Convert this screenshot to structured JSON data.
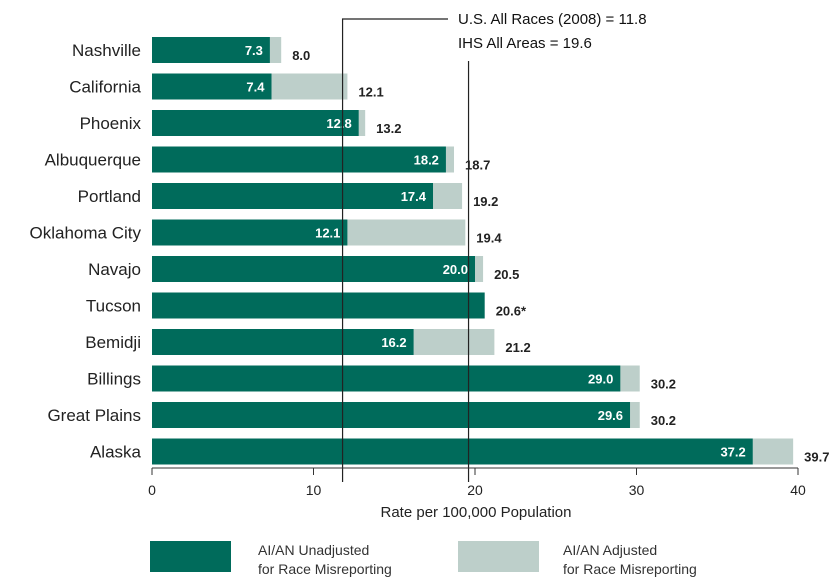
{
  "chart_data": {
    "type": "bar",
    "orientation": "horizontal",
    "categories": [
      "Nashville",
      "California",
      "Phoenix",
      "Albuquerque",
      "Portland",
      "Oklahoma City",
      "Navajo",
      "Tucson",
      "Bemidji",
      "Billings",
      "Great Plains",
      "Alaska"
    ],
    "series": [
      {
        "name": "AI/AN Unadjusted for Race Misreporting",
        "color": "#006b5b",
        "values": [
          7.3,
          7.4,
          12.8,
          18.2,
          17.4,
          12.1,
          20.0,
          20.6,
          16.2,
          29.0,
          29.6,
          37.2
        ],
        "labels": [
          "7.3",
          "7.4",
          "12.8",
          "18.2",
          "17.4",
          "12.1",
          "20.0",
          "",
          "16.2",
          "29.0",
          "29.6",
          "37.2"
        ]
      },
      {
        "name": "AI/AN Adjusted for Race Misreporting",
        "color": "#bdcfca",
        "values": [
          8.0,
          12.1,
          13.2,
          18.7,
          19.2,
          19.4,
          20.5,
          20.6,
          21.2,
          30.2,
          30.2,
          39.7
        ],
        "labels": [
          "8.0",
          "12.1",
          "13.2",
          "18.7",
          "19.2",
          "19.4",
          "20.5",
          "20.6*",
          "21.2",
          "30.2",
          "30.2",
          "39.7"
        ]
      }
    ],
    "xlabel": "Rate per 100,000 Population",
    "xlim": [
      0,
      40
    ],
    "xticks": [
      "0",
      "10",
      "20",
      "30",
      "40"
    ],
    "reference_lines": [
      {
        "label": "U.S. All Races (2008) = 11.8",
        "value": 11.8
      },
      {
        "label": "IHS All Areas = 19.6",
        "value": 19.6
      }
    ],
    "legend": {
      "placement": "bottom",
      "items": [
        {
          "line1": "AI/AN Unadjusted",
          "line2": "for Race Misreporting",
          "color": "#006b5b"
        },
        {
          "line1": "AI/AN Adjusted",
          "line2": "for Race Misreporting",
          "color": "#bdcfca"
        }
      ]
    },
    "grid": false
  }
}
